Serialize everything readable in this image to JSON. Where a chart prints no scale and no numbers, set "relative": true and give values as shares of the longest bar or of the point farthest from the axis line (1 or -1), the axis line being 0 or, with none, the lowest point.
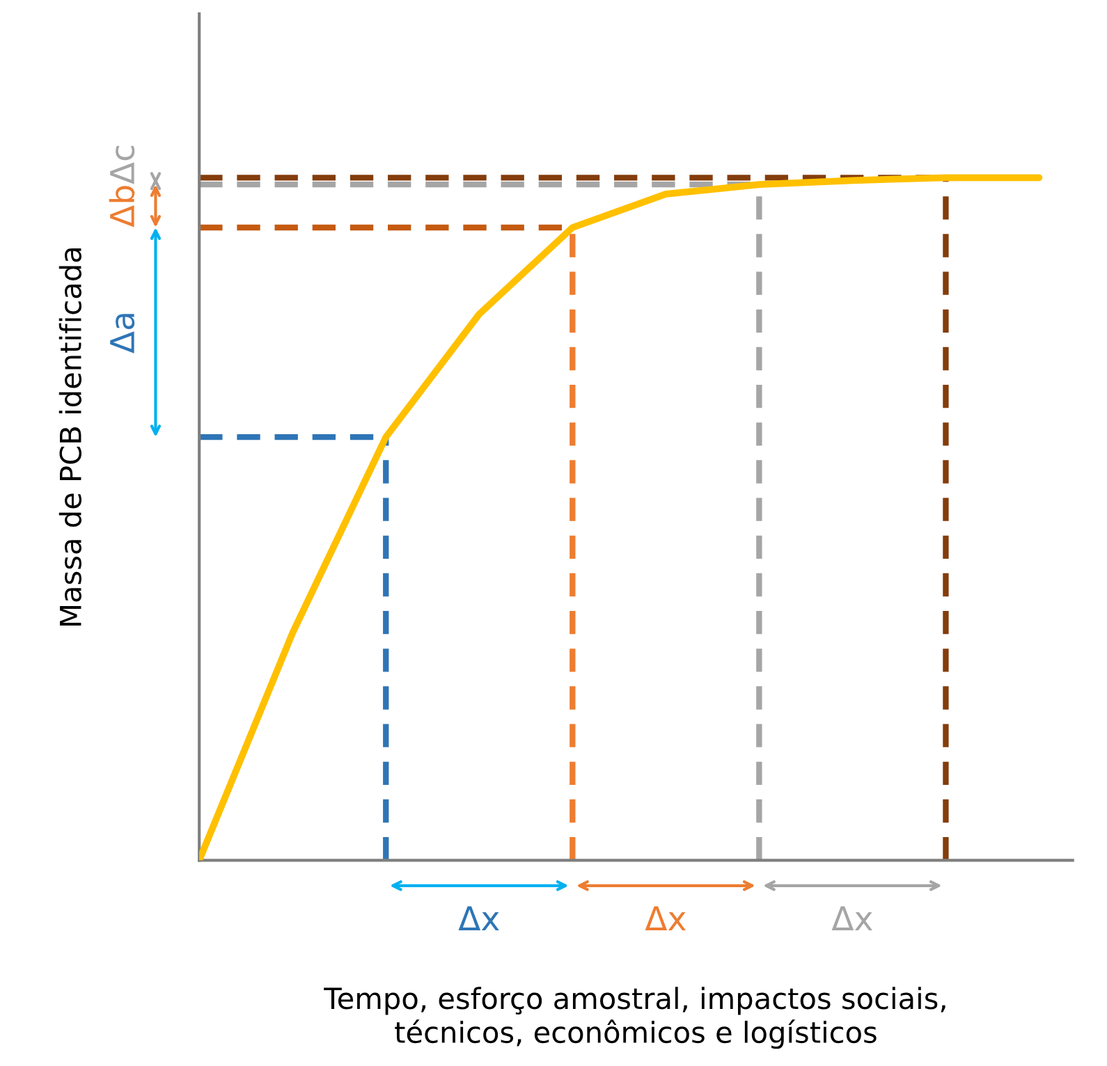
{
  "chart_data": {
    "type": "line",
    "relative": true,
    "xlabel": "Tempo, esforço amostral, impactos sociais,\ntécnicos, econômicos e logísticos",
    "ylabel": "Massa de PCB identificada",
    "categories": [
      null,
      null,
      null,
      null,
      null,
      null,
      null,
      null,
      null,
      null
    ],
    "marker": "none",
    "line_style": "solid",
    "series": [
      {
        "color": "#ffc000",
        "values": [
          0,
          0.333,
          0.62,
          0.8,
          0.927,
          0.976,
          0.99,
          0.996,
          1,
          1
        ]
      }
    ],
    "ref_lines": [
      {
        "axis": "y",
        "value": 0.62,
        "color": "#2e75b6",
        "line_style": "dashed"
      },
      {
        "axis": "y",
        "value": 0.927,
        "color": "#c55a11",
        "line_style": "dashed"
      },
      {
        "axis": "y",
        "value": 0.99,
        "color": "#a5a5a5",
        "line_style": "dashed"
      },
      {
        "axis": "y",
        "value": 1,
        "color": "#843c0c",
        "line_style": "dashed"
      }
    ],
    "annotations": [
      "Δa",
      "Δb",
      "Δc",
      "Δx",
      "Δx",
      "Δx"
    ]
  }
}
